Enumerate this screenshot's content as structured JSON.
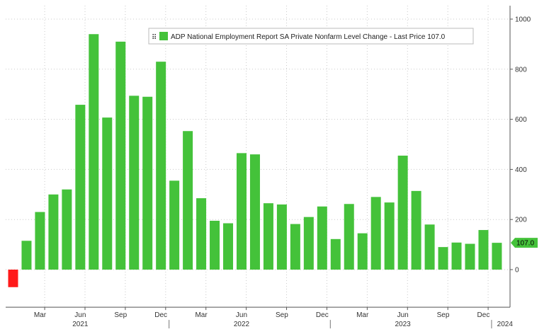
{
  "chart_data": {
    "type": "bar",
    "title": "ADP National Employment Report SA Private Nonfarm Level Change",
    "legend": {
      "label": "ADP National Employment Report SA Private Nonfarm Level Change - Last Price 107.0",
      "placement": "top-center"
    },
    "last_price_label": "107.0",
    "series_color": "#44c23a",
    "negative_color": "#ff1a1a",
    "last_label_color": "#44c23a",
    "ylim": [
      -150,
      1000
    ],
    "y_ticks": [
      0,
      200,
      400,
      600,
      800,
      1000
    ],
    "y_axis_position": "right",
    "grid": true,
    "x_ticks": [
      "Mar",
      "Jun",
      "Sep",
      "Dec",
      "Mar",
      "Jun",
      "Sep",
      "Dec",
      "Mar",
      "Jun",
      "Sep",
      "Dec"
    ],
    "x_tick_months": [
      2,
      5,
      8,
      11,
      14,
      17,
      20,
      23,
      26,
      29,
      32,
      35
    ],
    "year_labels": [
      "2021",
      "2022",
      "2023",
      "2024"
    ],
    "year_label_months": [
      5,
      17,
      29,
      36.6
    ],
    "categories": [
      "Jan 2021",
      "Feb 2021",
      "Mar 2021",
      "Apr 2021",
      "May 2021",
      "Jun 2021",
      "Jul 2021",
      "Aug 2021",
      "Sep 2021",
      "Oct 2021",
      "Nov 2021",
      "Dec 2021",
      "Jan 2022",
      "Feb 2022",
      "Mar 2022",
      "Apr 2022",
      "May 2022",
      "Jun 2022",
      "Jul 2022",
      "Aug 2022",
      "Sep 2022",
      "Oct 2022",
      "Nov 2022",
      "Dec 2022",
      "Jan 2023",
      "Feb 2023",
      "Mar 2023",
      "Apr 2023",
      "May 2023",
      "Jun 2023",
      "Jul 2023",
      "Aug 2023",
      "Sep 2023",
      "Oct 2023",
      "Nov 2023",
      "Dec 2023",
      "Jan 2024"
    ],
    "values": [
      -70,
      115,
      230,
      300,
      320,
      658,
      940,
      607,
      910,
      694,
      690,
      830,
      355,
      553,
      285,
      195,
      185,
      465,
      460,
      265,
      260,
      182,
      210,
      252,
      122,
      262,
      145,
      290,
      268,
      455,
      314,
      180,
      90,
      108,
      103,
      158,
      107
    ]
  }
}
